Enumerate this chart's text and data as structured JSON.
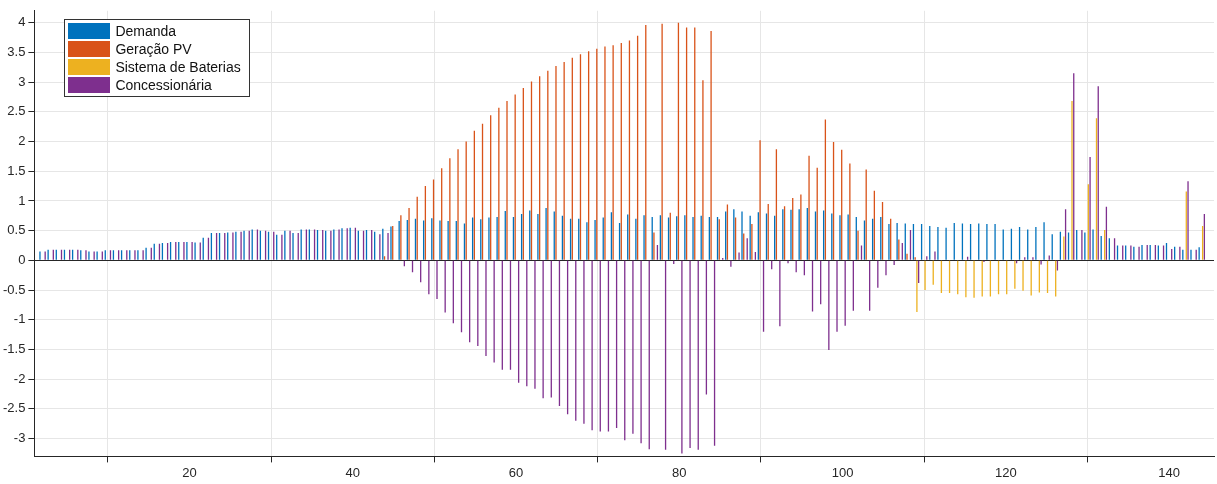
{
  "chart_data": {
    "type": "bar",
    "x": [
      2,
      3,
      4,
      5,
      6,
      7,
      8,
      9,
      10,
      11,
      12,
      13,
      14,
      15,
      16,
      17,
      18,
      19,
      20,
      21,
      22,
      23,
      24,
      25,
      26,
      27,
      28,
      29,
      30,
      31,
      32,
      33,
      34,
      35,
      36,
      37,
      38,
      39,
      40,
      41,
      42,
      43,
      44,
      45,
      46,
      47,
      48,
      49,
      50,
      51,
      52,
      53,
      54,
      55,
      56,
      57,
      58,
      59,
      60,
      61,
      62,
      63,
      64,
      65,
      66,
      67,
      68,
      69,
      70,
      71,
      72,
      73,
      74,
      75,
      76,
      77,
      78,
      79,
      80,
      81,
      82,
      83,
      84,
      85,
      86,
      87,
      88,
      89,
      90,
      91,
      92,
      93,
      94,
      95,
      96,
      97,
      98,
      99,
      100,
      101,
      102,
      103,
      104,
      105,
      106,
      107,
      108,
      109,
      110,
      111,
      112,
      113,
      114,
      115,
      116,
      117,
      118,
      119,
      120,
      121,
      122,
      123,
      124,
      125,
      126,
      127,
      128,
      129,
      130,
      131,
      132,
      133,
      134,
      135,
      136,
      137,
      138,
      139,
      140,
      141,
      142,
      143,
      144
    ],
    "series": [
      {
        "name": "Demanda",
        "color": "#0072bd",
        "values": [
          0.15,
          0.18,
          0.18,
          0.18,
          0.18,
          0.17,
          0.15,
          0.15,
          0.17,
          0.17,
          0.17,
          0.17,
          0.17,
          0.21,
          0.28,
          0.29,
          0.31,
          0.31,
          0.31,
          0.3,
          0.38,
          0.46,
          0.46,
          0.47,
          0.48,
          0.5,
          0.52,
          0.5,
          0.48,
          0.43,
          0.5,
          0.46,
          0.52,
          0.52,
          0.51,
          0.5,
          0.52,
          0.54,
          0.55,
          0.5,
          0.51,
          0.48,
          0.53,
          0.57,
          0.66,
          0.68,
          0.7,
          0.67,
          0.71,
          0.67,
          0.66,
          0.66,
          0.62,
          0.72,
          0.69,
          0.72,
          0.73,
          0.83,
          0.73,
          0.78,
          0.84,
          0.78,
          0.88,
          0.82,
          0.75,
          0.7,
          0.7,
          0.64,
          0.68,
          0.72,
          0.81,
          0.63,
          0.77,
          0.7,
          0.76,
          0.73,
          0.76,
          0.72,
          0.74,
          0.76,
          0.73,
          0.75,
          0.73,
          0.73,
          0.82,
          0.86,
          0.82,
          0.75,
          0.81,
          0.79,
          0.75,
          0.86,
          0.85,
          0.86,
          0.88,
          0.82,
          0.84,
          0.79,
          0.76,
          0.77,
          0.73,
          0.67,
          0.7,
          0.73,
          0.61,
          0.63,
          0.62,
          0.61,
          0.61,
          0.58,
          0.56,
          0.55,
          0.63,
          0.62,
          0.61,
          0.62,
          0.61,
          0.61,
          0.52,
          0.53,
          0.56,
          0.52,
          0.56,
          0.64,
          0.44,
          0.48,
          0.47,
          0.51,
          0.47,
          0.52,
          0.41,
          0.37,
          0.25,
          0.25,
          0.23,
          0.26,
          0.26,
          0.25,
          0.29,
          0.23,
          0.18,
          0.18,
          0.22
        ]
      },
      {
        "name": "Geração PV",
        "color": "#d95319",
        "values": [
          0,
          0,
          0,
          0,
          0,
          0,
          0,
          0,
          0,
          0,
          0,
          0,
          0,
          0,
          0,
          0,
          0,
          0,
          0,
          0,
          0,
          0,
          0,
          0,
          0,
          0,
          0,
          0,
          0,
          0,
          0,
          0,
          0,
          0,
          0,
          0,
          0,
          0,
          0,
          0,
          0,
          0,
          0.07,
          0.58,
          0.76,
          0.88,
          1.07,
          1.25,
          1.36,
          1.55,
          1.72,
          1.87,
          2.0,
          2.18,
          2.3,
          2.44,
          2.57,
          2.68,
          2.79,
          2.9,
          3.01,
          3.1,
          3.19,
          3.27,
          3.34,
          3.41,
          3.47,
          3.52,
          3.56,
          3.6,
          3.62,
          3.66,
          3.7,
          3.78,
          3.96,
          0.47,
          3.98,
          0.8,
          4.0,
          3.92,
          3.92,
          3.03,
          3.86,
          0.69,
          0.94,
          0.72,
          0.45,
          0.61,
          2.02,
          0.95,
          1.87,
          0.91,
          1.05,
          1.11,
          1.76,
          1.56,
          2.37,
          1.99,
          1.86,
          1.63,
          0.5,
          1.53,
          1.17,
          0.98,
          0.7,
          0.35,
          0.11,
          0.05,
          0,
          0,
          0,
          0,
          0,
          0,
          0,
          0,
          0,
          0,
          0,
          0,
          0,
          0,
          0,
          0,
          0,
          0,
          0,
          0,
          0,
          0,
          0,
          0,
          0,
          0,
          0,
          0,
          0,
          0,
          0,
          0,
          0,
          0,
          0
        ]
      },
      {
        "name": "Sistema de Baterias",
        "color": "#edb120",
        "values": [
          0,
          0,
          0,
          0,
          0,
          0,
          0,
          0,
          0,
          0,
          0,
          0,
          0,
          0,
          0,
          0,
          0,
          0,
          0,
          0,
          0,
          0,
          0,
          0,
          0,
          0,
          0,
          0,
          0,
          0,
          0,
          0,
          0,
          0,
          0,
          0,
          0,
          0,
          0,
          0,
          0,
          0,
          0,
          0,
          0,
          0,
          0,
          0,
          0,
          0,
          0,
          0,
          0,
          0,
          0,
          0,
          0,
          0,
          0,
          0,
          0,
          0,
          0,
          0,
          0,
          0,
          0,
          0,
          0,
          0,
          0,
          0,
          0,
          0,
          0,
          0,
          0,
          0,
          0,
          0,
          0,
          0,
          0,
          0,
          0,
          0,
          0,
          0,
          0,
          0,
          0,
          0,
          0,
          0,
          0,
          0,
          0,
          0,
          0,
          0,
          0,
          0,
          0,
          0,
          0,
          0,
          0,
          -0.87,
          -0.5,
          -0.41,
          -0.55,
          -0.55,
          -0.57,
          -0.62,
          -0.63,
          -0.61,
          -0.61,
          -0.57,
          -0.57,
          -0.48,
          -0.51,
          -0.59,
          -0.54,
          -0.55,
          -0.61,
          0.4,
          2.68,
          0,
          1.28,
          2.39,
          0.51,
          0,
          0,
          0,
          0,
          0,
          0,
          0,
          0,
          0,
          1.16,
          0,
          0.58
        ]
      },
      {
        "name": "Concessionária",
        "color": "#7e2f8e",
        "values": [
          0.15,
          0.18,
          0.18,
          0.18,
          0.18,
          0.17,
          0.15,
          0.15,
          0.17,
          0.17,
          0.17,
          0.17,
          0.17,
          0.21,
          0.28,
          0.29,
          0.31,
          0.31,
          0.31,
          0.3,
          0.38,
          0.46,
          0.46,
          0.47,
          0.48,
          0.5,
          0.52,
          0.5,
          0.48,
          0.43,
          0.5,
          0.46,
          0.52,
          0.52,
          0.51,
          0.5,
          0.52,
          0.54,
          0.55,
          0.5,
          0.51,
          0.44,
          0.46,
          0,
          -0.1,
          -0.2,
          -0.37,
          -0.57,
          -0.65,
          -0.88,
          -1.06,
          -1.21,
          -1.38,
          -1.44,
          -1.61,
          -1.72,
          -1.84,
          -1.84,
          -2.06,
          -2.12,
          -2.16,
          -2.32,
          -2.31,
          -2.45,
          -2.59,
          -2.7,
          -2.75,
          -2.86,
          -2.88,
          -2.88,
          -2.82,
          -3.03,
          -2.92,
          -3.08,
          -3.18,
          0.26,
          -3.19,
          -0.06,
          -3.25,
          -3.16,
          -3.19,
          -2.26,
          -3.12,
          0.04,
          -0.11,
          0.13,
          0.37,
          0.14,
          -1.2,
          -0.15,
          -1.11,
          -0.05,
          -0.2,
          -0.25,
          -0.86,
          -0.74,
          -1.51,
          -1.2,
          -1.1,
          -0.85,
          0.25,
          -0.85,
          -0.46,
          -0.25,
          -0.08,
          0.29,
          0.51,
          -0.38,
          0.07,
          0.15,
          0,
          0,
          0,
          0.06,
          0,
          -0.03,
          0,
          0,
          0,
          -0.05,
          0.05,
          0.05,
          -0.07,
          0.08,
          -0.17,
          0.86,
          3.15,
          0.51,
          1.74,
          2.93,
          0.9,
          0.37,
          0.25,
          0.25,
          0.23,
          0.26,
          0.26,
          0.25,
          0.19,
          0.23,
          1.33,
          0.18,
          0.78
        ]
      }
    ],
    "xlim": [
      1,
      145.5
    ],
    "xticks": [
      20,
      40,
      60,
      80,
      100,
      120,
      140
    ],
    "ylim": [
      -3.3,
      4.2
    ],
    "yticks": [
      -3,
      -2.5,
      -2,
      -1.5,
      -1,
      -0.5,
      0,
      0.5,
      1,
      1.5,
      2,
      2.5,
      3,
      3.5,
      4
    ],
    "grid": true,
    "legend": "top left"
  }
}
